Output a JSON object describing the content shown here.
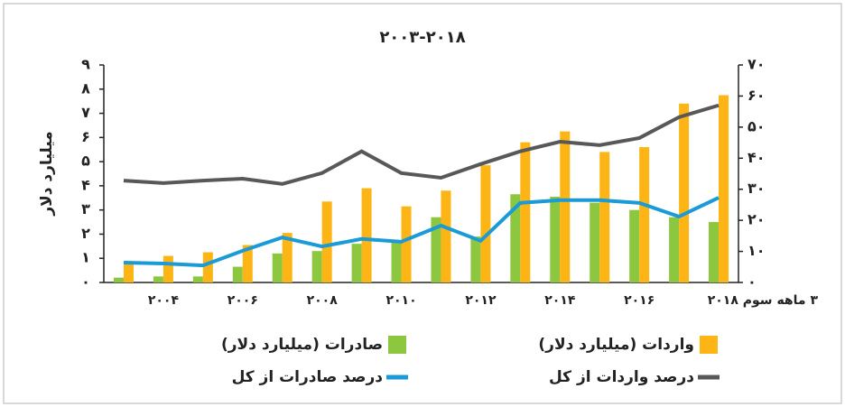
{
  "chart_data": {
    "type": "bar",
    "title": "۲۰۰۳-۲۰۱۸",
    "ylabel": "میلیارد دلار",
    "categories": [
      null,
      "۲۰۰۴",
      null,
      "۲۰۰۶",
      null,
      "۲۰۰۸",
      null,
      "۲۰۱۰",
      null,
      "۲۰۱۲",
      null,
      "۲۰۱۴",
      null,
      "۲۰۱۶",
      null,
      "۳ ماهه سوم ۲۰۱۸"
    ],
    "series": [
      {
        "name": "صادرات (میلیارد دلار)",
        "kind": "bar",
        "color": "#8dc63f",
        "values": [
          0.2,
          0.25,
          0.25,
          0.65,
          1.2,
          1.3,
          1.6,
          1.7,
          2.7,
          1.9,
          3.65,
          3.55,
          3.3,
          3.0,
          2.7,
          2.5
        ]
      },
      {
        "name": "واردات (میلیارد دلار)",
        "kind": "bar",
        "color": "#fdb515",
        "values": [
          0.85,
          1.1,
          1.25,
          1.55,
          2.05,
          3.35,
          3.9,
          3.15,
          3.8,
          4.85,
          5.8,
          6.25,
          5.4,
          5.6,
          7.4,
          7.75
        ]
      },
      {
        "name": "درصد صادرات از کل",
        "kind": "line",
        "axis": "y2",
        "color": "#1a9ad6",
        "values": [
          6.4,
          6.1,
          5.5,
          10.2,
          14.5,
          11.6,
          14,
          13.1,
          18.3,
          13.4,
          25.6,
          26.5,
          26.5,
          25.6,
          21.2,
          27.3
        ]
      },
      {
        "name": "درصد واردات از کل",
        "kind": "line",
        "axis": "y2",
        "color": "#58585a",
        "values": [
          32.8,
          32,
          32.8,
          33.4,
          31.7,
          35.2,
          42.2,
          35.2,
          33.7,
          38.1,
          42.2,
          45.3,
          44.2,
          46.5,
          53.2,
          57
        ]
      }
    ],
    "ylim": [
      0,
      9
    ],
    "yticks": [
      {
        "value": 0,
        "label": "۰"
      },
      {
        "value": 1,
        "label": "۱"
      },
      {
        "value": 2,
        "label": "۲"
      },
      {
        "value": 3,
        "label": "۳"
      },
      {
        "value": 4,
        "label": "۴"
      },
      {
        "value": 5,
        "label": "۵"
      },
      {
        "value": 6,
        "label": "۶"
      },
      {
        "value": 7,
        "label": "۷"
      },
      {
        "value": 8,
        "label": "۸"
      },
      {
        "value": 9,
        "label": "۹"
      }
    ],
    "y2lim": [
      0,
      70
    ],
    "y2ticks": [
      {
        "value": 0,
        "label": "۰"
      },
      {
        "value": 10,
        "label": "۱۰"
      },
      {
        "value": 20,
        "label": "۲۰"
      },
      {
        "value": 30,
        "label": "۳۰"
      },
      {
        "value": 40,
        "label": "۴۰"
      },
      {
        "value": 50,
        "label": "۵۰"
      },
      {
        "value": 60,
        "label": "۶۰"
      },
      {
        "value": 70,
        "label": "۷۰"
      }
    ]
  }
}
